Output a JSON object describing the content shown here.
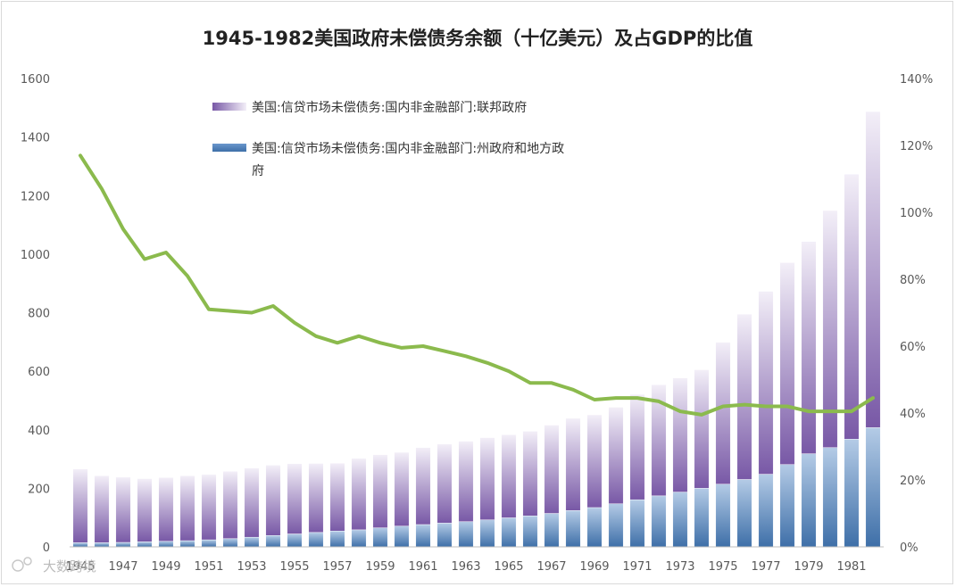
{
  "chart_data": {
    "type": "bar+line",
    "title": "1945-1982美国政府未偿债务余额（十亿美元）及占GDP的比值",
    "categories": [
      "1945",
      "1946",
      "1947",
      "1948",
      "1949",
      "1950",
      "1951",
      "1952",
      "1953",
      "1954",
      "1955",
      "1956",
      "1957",
      "1958",
      "1959",
      "1960",
      "1961",
      "1962",
      "1963",
      "1964",
      "1965",
      "1966",
      "1967",
      "1968",
      "1969",
      "1970",
      "1971",
      "1972",
      "1973",
      "1974",
      "1975",
      "1976",
      "1977",
      "1978",
      "1979",
      "1980",
      "1981",
      "1982"
    ],
    "x_tick_labels": [
      "1945",
      "1947",
      "1949",
      "1951",
      "1953",
      "1955",
      "1957",
      "1959",
      "1961",
      "1963",
      "1965",
      "1967",
      "1969",
      "1971",
      "1973",
      "1975",
      "1977",
      "1979",
      "1981"
    ],
    "ylim_left": [
      0,
      1600
    ],
    "left_ticks": [
      "0",
      "200",
      "400",
      "600",
      "800",
      "1000",
      "1200",
      "1400",
      "1600"
    ],
    "ylim_right": [
      0,
      1.4
    ],
    "right_ticks": [
      "0%",
      "20%",
      "40%",
      "60%",
      "80%",
      "100%",
      "120%",
      "140%"
    ],
    "series": [
      {
        "name": "美国:信贷市场未偿债务:国内非金融部门:州政府和地方政府",
        "kind": "bar-stacked",
        "color_light": "#b4cbe6",
        "color_dark": "#3e6fa8",
        "values": [
          14,
          14,
          15,
          17,
          19,
          21,
          24,
          28,
          33,
          39,
          44,
          49,
          54,
          58,
          65,
          71,
          76,
          81,
          86,
          92,
          99,
          106,
          114,
          124,
          134,
          147,
          161,
          174,
          187,
          200,
          214,
          230,
          248,
          281,
          318,
          339,
          368,
          407
        ]
      },
      {
        "name": "美国:信贷市场未偿债务:国内非金融部门:联邦政府",
        "kind": "bar-stacked",
        "color_light": "#f3eff8",
        "color_dark": "#7858a6",
        "values": [
          252,
          229,
          223,
          216,
          218,
          222,
          223,
          230,
          236,
          240,
          240,
          236,
          232,
          244,
          250,
          252,
          263,
          270,
          275,
          281,
          284,
          289,
          302,
          315,
          317,
          330,
          360,
          380,
          390,
          405,
          485,
          565,
          625,
          690,
          725,
          810,
          905,
          1080
        ]
      },
      {
        "name": "占GDP的比值",
        "kind": "line",
        "axis": "right",
        "color": "#8bba4d",
        "values": [
          1.17,
          1.07,
          0.95,
          0.86,
          0.88,
          0.81,
          0.71,
          0.705,
          0.7,
          0.72,
          0.67,
          0.63,
          0.61,
          0.63,
          0.61,
          0.595,
          0.6,
          0.585,
          0.57,
          0.55,
          0.525,
          0.49,
          0.49,
          0.47,
          0.44,
          0.445,
          0.445,
          0.435,
          0.405,
          0.395,
          0.42,
          0.425,
          0.42,
          0.42,
          0.405,
          0.405,
          0.405,
          0.445
        ]
      }
    ],
    "legend": [
      {
        "label": "美国:信贷市场未偿债务:国内非金融部门:联邦政府"
      },
      {
        "label_line1": "美国:信贷市场未偿债务:国内非金融部门:州政府和地方政",
        "label_line2": "府"
      }
    ]
  },
  "watermark": "大数跨境"
}
